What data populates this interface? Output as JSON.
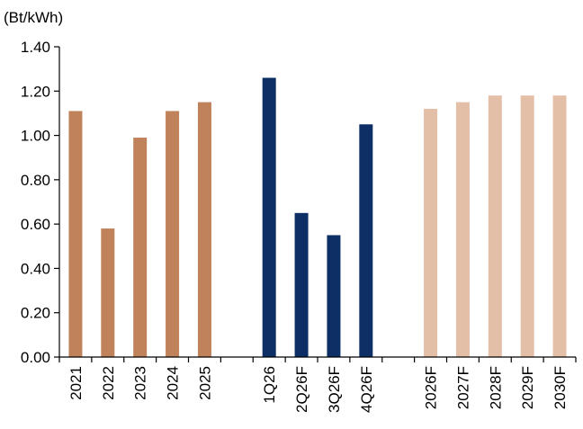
{
  "chart_data": {
    "type": "bar",
    "unit_label": "(Bt/kWh)",
    "ylim": [
      0,
      1.4
    ],
    "y_ticks": [
      "0.00",
      "0.20",
      "0.40",
      "0.60",
      "0.80",
      "1.00",
      "1.20",
      "1.40"
    ],
    "grid": false,
    "legend": "none",
    "slots": [
      {
        "label": "2021",
        "value": 1.11,
        "group": "annual_actual"
      },
      {
        "label": "2022",
        "value": 0.58,
        "group": "annual_actual"
      },
      {
        "label": "2023",
        "value": 0.99,
        "group": "annual_actual"
      },
      {
        "label": "2024",
        "value": 1.11,
        "group": "annual_actual"
      },
      {
        "label": "2025",
        "value": 1.15,
        "group": "annual_actual"
      },
      {
        "label": "",
        "value": null,
        "group": "gap"
      },
      {
        "label": "1Q26",
        "value": 1.26,
        "group": "quarterly"
      },
      {
        "label": "2Q26F",
        "value": 0.65,
        "group": "quarterly"
      },
      {
        "label": "3Q26F",
        "value": 0.55,
        "group": "quarterly"
      },
      {
        "label": "4Q26F",
        "value": 1.05,
        "group": "quarterly"
      },
      {
        "label": "",
        "value": null,
        "group": "gap"
      },
      {
        "label": "2026F",
        "value": 1.12,
        "group": "annual_forecast"
      },
      {
        "label": "2027F",
        "value": 1.15,
        "group": "annual_forecast"
      },
      {
        "label": "2028F",
        "value": 1.18,
        "group": "annual_forecast"
      },
      {
        "label": "2029F",
        "value": 1.18,
        "group": "annual_forecast"
      },
      {
        "label": "2030F",
        "value": 1.18,
        "group": "annual_forecast"
      }
    ],
    "colors": {
      "annual_actual": "#c0825a",
      "quarterly": "#0d2f66",
      "annual_forecast": "#e3bfa8",
      "axis": "#000000"
    }
  }
}
